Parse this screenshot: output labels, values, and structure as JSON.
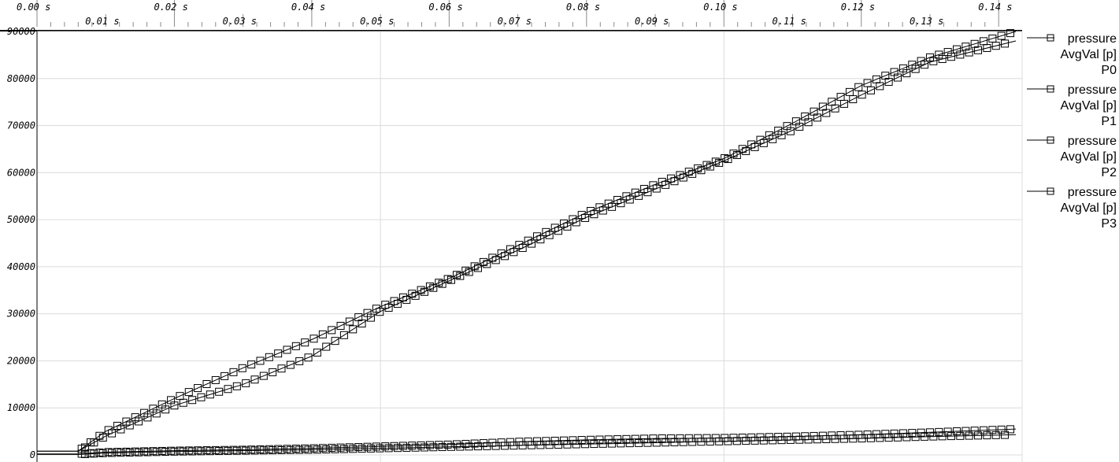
{
  "chart_data": {
    "type": "line",
    "title": "",
    "xlabel": "",
    "ylabel": "",
    "x_unit": "s",
    "xlim": [
      0.0,
      0.1425
    ],
    "ylim": [
      0,
      90000
    ],
    "grid": true,
    "legend_position": "right",
    "x_ticks_row1": [
      "0.00 s",
      "0.02 s",
      "0.04 s",
      "0.06 s",
      "0.08 s",
      "0.10 s",
      "0.12 s",
      "0.14 s"
    ],
    "x_ticks_row2": [
      "0.01 s",
      "0.03 s",
      "0.05 s",
      "0.07 s",
      "0.09 s",
      "0.11 s",
      "0.13 s"
    ],
    "y_ticks": [
      "0",
      "10000",
      "20000",
      "30000",
      "40000",
      "50000",
      "60000",
      "70000",
      "80000",
      "90000"
    ],
    "series": [
      {
        "name": "pressure AvgVal [p] P0",
        "legend_lines": [
          "pressure",
          "AvgVal [p]",
          "P0"
        ],
        "x": [
          0.0,
          0.006,
          0.01,
          0.02,
          0.03,
          0.04,
          0.05,
          0.06,
          0.07,
          0.08,
          0.09,
          0.1,
          0.11,
          0.12,
          0.13,
          0.1425
        ],
        "y": [
          800,
          800,
          5000,
          12000,
          18500,
          24500,
          31500,
          37500,
          44500,
          51500,
          57500,
          63000,
          70500,
          78500,
          84500,
          90000
        ]
      },
      {
        "name": "pressure AvgVal [p] P1",
        "legend_lines": [
          "pressure",
          "AvgVal [p]",
          "P1"
        ],
        "x": [
          0.0,
          0.006,
          0.01,
          0.02,
          0.03,
          0.04,
          0.05,
          0.06,
          0.07,
          0.08,
          0.09,
          0.1,
          0.11,
          0.12,
          0.13,
          0.1425
        ],
        "y": [
          800,
          800,
          4000,
          10500,
          15000,
          21000,
          30500,
          37000,
          43500,
          50500,
          56500,
          62500,
          69000,
          76500,
          83500,
          88000
        ]
      },
      {
        "name": "pressure AvgVal [p] P2",
        "legend_lines": [
          "pressure",
          "AvgVal [p]",
          "P2"
        ],
        "x": [
          0.0,
          0.006,
          0.01,
          0.02,
          0.03,
          0.04,
          0.05,
          0.06,
          0.07,
          0.08,
          0.09,
          0.1,
          0.11,
          0.12,
          0.13,
          0.1425
        ],
        "y": [
          200,
          200,
          600,
          900,
          1100,
          1400,
          1800,
          2200,
          2800,
          3200,
          3500,
          3600,
          3900,
          4300,
          4800,
          5500
        ]
      },
      {
        "name": "pressure AvgVal [p] P3",
        "legend_lines": [
          "pressure",
          "AvgVal [p]",
          "P3"
        ],
        "x": [
          0.0,
          0.006,
          0.01,
          0.02,
          0.03,
          0.04,
          0.05,
          0.06,
          0.07,
          0.08,
          0.09,
          0.1,
          0.11,
          0.12,
          0.13,
          0.1425
        ],
        "y": [
          100,
          100,
          400,
          700,
          900,
          1100,
          1400,
          1700,
          2000,
          2300,
          2600,
          2900,
          3200,
          3500,
          3900,
          4300
        ]
      }
    ]
  }
}
